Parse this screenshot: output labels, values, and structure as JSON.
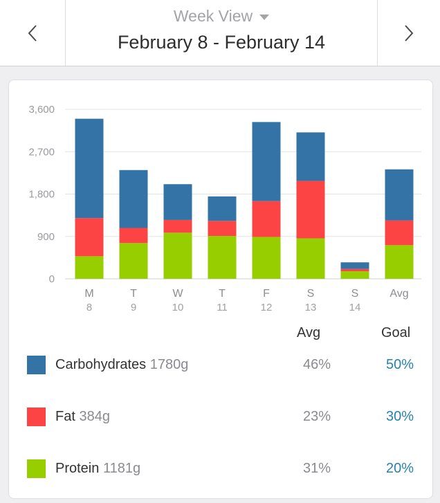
{
  "header": {
    "view_label": "Week View",
    "date_range": "February 8 - February 14"
  },
  "colors": {
    "carbohydrates": "#3373a6",
    "fat": "#fd4444",
    "protein": "#97ce00",
    "goal_text": "#2683ad"
  },
  "chart_data": {
    "type": "bar",
    "stacked": true,
    "categories": [
      "M",
      "T",
      "W",
      "T",
      "F",
      "S",
      "S",
      "Avg"
    ],
    "category_dates": [
      "8",
      "9",
      "10",
      "11",
      "12",
      "13",
      "14",
      ""
    ],
    "series": [
      {
        "name": "Protein",
        "color": "#97ce00",
        "values": [
          480,
          760,
          980,
          910,
          890,
          860,
          160,
          715
        ]
      },
      {
        "name": "Fat",
        "color": "#fd4444",
        "values": [
          810,
          320,
          270,
          320,
          760,
          1220,
          50,
          525
        ]
      },
      {
        "name": "Carbohydrates",
        "color": "#3373a6",
        "values": [
          2110,
          1230,
          760,
          520,
          1680,
          1030,
          140,
          1085
        ]
      }
    ],
    "y_ticks": [
      "0",
      "900",
      "1,800",
      "2,700",
      "3,600"
    ],
    "y_tick_values": [
      0,
      900,
      1800,
      2700,
      3600
    ],
    "ylim": [
      0,
      3600
    ],
    "grid": true
  },
  "summary": {
    "avg_header": "Avg",
    "goal_header": "Goal",
    "rows": [
      {
        "name": "Carbohydrates",
        "grams": "1780g",
        "avg": "46%",
        "goal": "50%",
        "color": "#3373a6"
      },
      {
        "name": "Fat",
        "grams": "384g",
        "avg": "23%",
        "goal": "30%",
        "color": "#fd4444"
      },
      {
        "name": "Protein",
        "grams": "1181g",
        "avg": "31%",
        "goal": "20%",
        "color": "#97ce00"
      }
    ]
  }
}
